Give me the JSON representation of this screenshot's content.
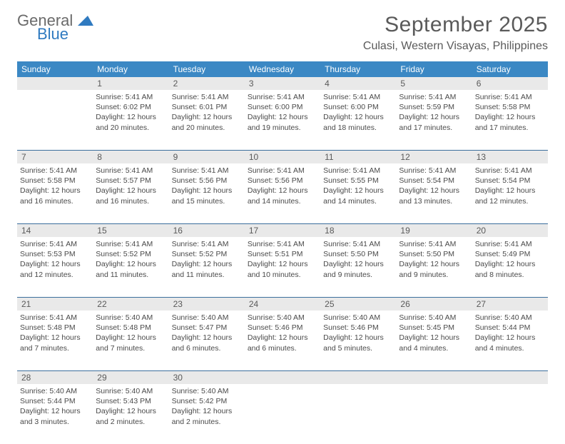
{
  "logo": {
    "general": "General",
    "blue": "Blue"
  },
  "title": "September 2025",
  "location": "Culasi, Western Visayas, Philippines",
  "colors": {
    "header_bg": "#3b88c4",
    "header_text": "#ffffff",
    "daynum_bg": "#e9e9e9",
    "week_border": "#3b6e9c",
    "text": "#4a4a4a",
    "title_color": "#5a5a5a",
    "logo_blue": "#2f7ac0",
    "logo_gray": "#6a6a6a"
  },
  "day_names": [
    "Sunday",
    "Monday",
    "Tuesday",
    "Wednesday",
    "Thursday",
    "Friday",
    "Saturday"
  ],
  "weeks": [
    [
      null,
      {
        "n": "1",
        "sunrise": "5:41 AM",
        "sunset": "6:02 PM",
        "daylight": "12 hours and 20 minutes."
      },
      {
        "n": "2",
        "sunrise": "5:41 AM",
        "sunset": "6:01 PM",
        "daylight": "12 hours and 20 minutes."
      },
      {
        "n": "3",
        "sunrise": "5:41 AM",
        "sunset": "6:00 PM",
        "daylight": "12 hours and 19 minutes."
      },
      {
        "n": "4",
        "sunrise": "5:41 AM",
        "sunset": "6:00 PM",
        "daylight": "12 hours and 18 minutes."
      },
      {
        "n": "5",
        "sunrise": "5:41 AM",
        "sunset": "5:59 PM",
        "daylight": "12 hours and 17 minutes."
      },
      {
        "n": "6",
        "sunrise": "5:41 AM",
        "sunset": "5:58 PM",
        "daylight": "12 hours and 17 minutes."
      }
    ],
    [
      {
        "n": "7",
        "sunrise": "5:41 AM",
        "sunset": "5:58 PM",
        "daylight": "12 hours and 16 minutes."
      },
      {
        "n": "8",
        "sunrise": "5:41 AM",
        "sunset": "5:57 PM",
        "daylight": "12 hours and 16 minutes."
      },
      {
        "n": "9",
        "sunrise": "5:41 AM",
        "sunset": "5:56 PM",
        "daylight": "12 hours and 15 minutes."
      },
      {
        "n": "10",
        "sunrise": "5:41 AM",
        "sunset": "5:56 PM",
        "daylight": "12 hours and 14 minutes."
      },
      {
        "n": "11",
        "sunrise": "5:41 AM",
        "sunset": "5:55 PM",
        "daylight": "12 hours and 14 minutes."
      },
      {
        "n": "12",
        "sunrise": "5:41 AM",
        "sunset": "5:54 PM",
        "daylight": "12 hours and 13 minutes."
      },
      {
        "n": "13",
        "sunrise": "5:41 AM",
        "sunset": "5:54 PM",
        "daylight": "12 hours and 12 minutes."
      }
    ],
    [
      {
        "n": "14",
        "sunrise": "5:41 AM",
        "sunset": "5:53 PM",
        "daylight": "12 hours and 12 minutes."
      },
      {
        "n": "15",
        "sunrise": "5:41 AM",
        "sunset": "5:52 PM",
        "daylight": "12 hours and 11 minutes."
      },
      {
        "n": "16",
        "sunrise": "5:41 AM",
        "sunset": "5:52 PM",
        "daylight": "12 hours and 11 minutes."
      },
      {
        "n": "17",
        "sunrise": "5:41 AM",
        "sunset": "5:51 PM",
        "daylight": "12 hours and 10 minutes."
      },
      {
        "n": "18",
        "sunrise": "5:41 AM",
        "sunset": "5:50 PM",
        "daylight": "12 hours and 9 minutes."
      },
      {
        "n": "19",
        "sunrise": "5:41 AM",
        "sunset": "5:50 PM",
        "daylight": "12 hours and 9 minutes."
      },
      {
        "n": "20",
        "sunrise": "5:41 AM",
        "sunset": "5:49 PM",
        "daylight": "12 hours and 8 minutes."
      }
    ],
    [
      {
        "n": "21",
        "sunrise": "5:41 AM",
        "sunset": "5:48 PM",
        "daylight": "12 hours and 7 minutes."
      },
      {
        "n": "22",
        "sunrise": "5:40 AM",
        "sunset": "5:48 PM",
        "daylight": "12 hours and 7 minutes."
      },
      {
        "n": "23",
        "sunrise": "5:40 AM",
        "sunset": "5:47 PM",
        "daylight": "12 hours and 6 minutes."
      },
      {
        "n": "24",
        "sunrise": "5:40 AM",
        "sunset": "5:46 PM",
        "daylight": "12 hours and 6 minutes."
      },
      {
        "n": "25",
        "sunrise": "5:40 AM",
        "sunset": "5:46 PM",
        "daylight": "12 hours and 5 minutes."
      },
      {
        "n": "26",
        "sunrise": "5:40 AM",
        "sunset": "5:45 PM",
        "daylight": "12 hours and 4 minutes."
      },
      {
        "n": "27",
        "sunrise": "5:40 AM",
        "sunset": "5:44 PM",
        "daylight": "12 hours and 4 minutes."
      }
    ],
    [
      {
        "n": "28",
        "sunrise": "5:40 AM",
        "sunset": "5:44 PM",
        "daylight": "12 hours and 3 minutes."
      },
      {
        "n": "29",
        "sunrise": "5:40 AM",
        "sunset": "5:43 PM",
        "daylight": "12 hours and 2 minutes."
      },
      {
        "n": "30",
        "sunrise": "5:40 AM",
        "sunset": "5:42 PM",
        "daylight": "12 hours and 2 minutes."
      },
      null,
      null,
      null,
      null
    ]
  ],
  "labels": {
    "sunrise": "Sunrise: ",
    "sunset": "Sunset: ",
    "daylight": "Daylight: "
  }
}
